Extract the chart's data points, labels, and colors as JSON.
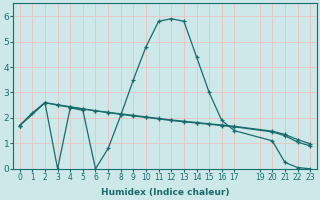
{
  "xlabel": "Humidex (Indice chaleur)",
  "bg_color": "#cce8e8",
  "line_color": "#1a6b6b",
  "grid_color": "#e8c8c8",
  "xlim": [
    -0.5,
    23.5
  ],
  "ylim": [
    0,
    6.5
  ],
  "xtick_positions": [
    0,
    1,
    2,
    3,
    4,
    5,
    6,
    7,
    8,
    9,
    10,
    11,
    12,
    13,
    14,
    15,
    16,
    17,
    19,
    20,
    21,
    22,
    23
  ],
  "xtick_labels": [
    "0",
    "1",
    "2",
    "3",
    "4",
    "5",
    "6",
    "7",
    "8",
    "9",
    "10",
    "11",
    "12",
    "13",
    "14",
    "15",
    "16",
    "17",
    "19",
    "20",
    "21",
    "22",
    "23"
  ],
  "yticks": [
    0,
    1,
    2,
    3,
    4,
    5,
    6
  ],
  "curve1_x": [
    0,
    1,
    2,
    3,
    4,
    5,
    6,
    7,
    8,
    9,
    10,
    11,
    12,
    13,
    14,
    15,
    16,
    17,
    20,
    21,
    22,
    23
  ],
  "curve1_y": [
    1.7,
    2.2,
    2.6,
    0.0,
    2.4,
    2.3,
    0.0,
    0.8,
    2.1,
    3.5,
    4.8,
    5.8,
    5.9,
    5.8,
    4.4,
    3.0,
    1.9,
    1.5,
    1.1,
    0.25,
    0.05,
    0.0
  ],
  "curve2_x": [
    0,
    2,
    3,
    4,
    5,
    6,
    7,
    8,
    9,
    10,
    11,
    12,
    13,
    14,
    15,
    16,
    17,
    20,
    21,
    22,
    23
  ],
  "curve2_y": [
    1.7,
    2.6,
    2.5,
    2.42,
    2.35,
    2.28,
    2.22,
    2.16,
    2.1,
    2.04,
    1.98,
    1.92,
    1.87,
    1.82,
    1.77,
    1.72,
    1.67,
    1.48,
    1.35,
    1.15,
    0.98
  ],
  "curve3_x": [
    0,
    2,
    3,
    4,
    5,
    6,
    7,
    8,
    9,
    10,
    11,
    12,
    13,
    14,
    15,
    16,
    17,
    20,
    21,
    22,
    23
  ],
  "curve3_y": [
    1.7,
    2.6,
    2.52,
    2.44,
    2.36,
    2.28,
    2.21,
    2.14,
    2.08,
    2.02,
    1.96,
    1.9,
    1.85,
    1.8,
    1.75,
    1.7,
    1.65,
    1.45,
    1.3,
    1.05,
    0.9
  ]
}
